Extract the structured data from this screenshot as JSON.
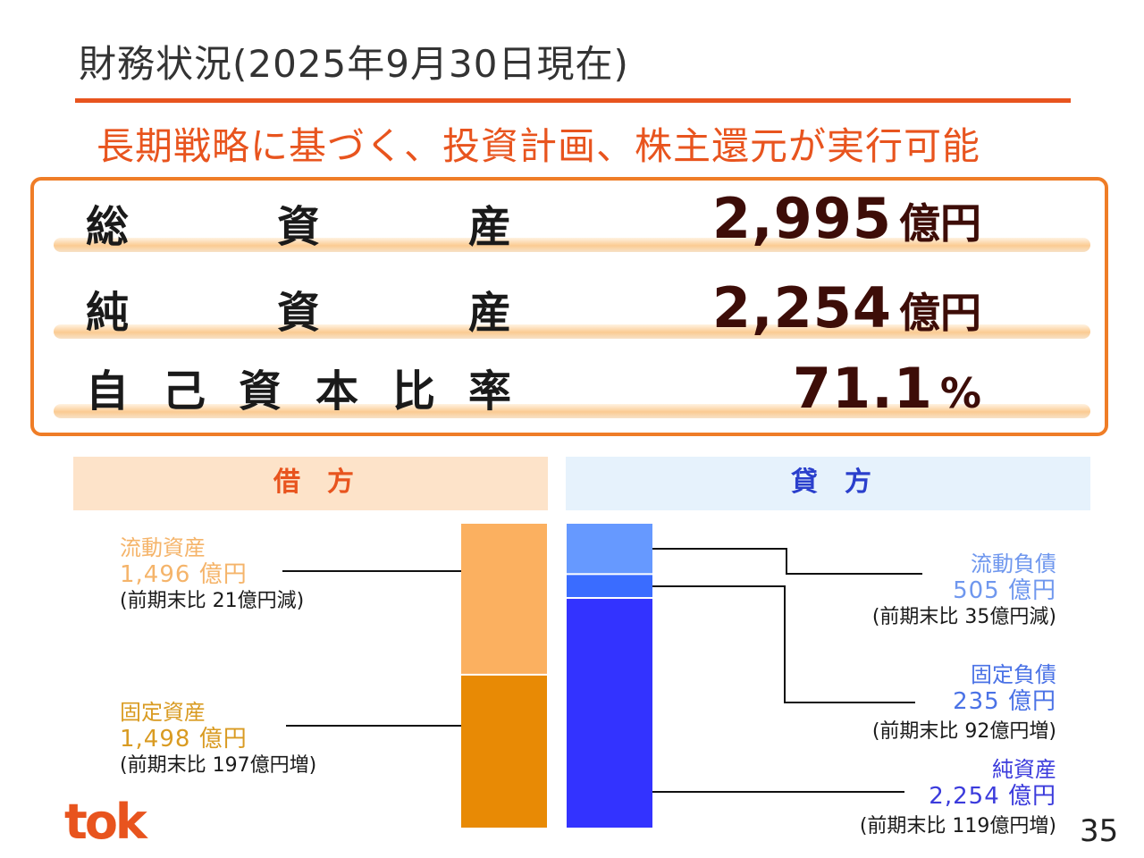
{
  "slide": {
    "title": "財務状況(2025年9月30日現在)",
    "subtitle": "長期戦略に基づく、投資計画、株主還元が実行可能",
    "page_number": "35",
    "logo_text": "tok"
  },
  "summary": {
    "total_assets": {
      "label_chars": [
        "総",
        "資",
        "産"
      ],
      "value": "2,995",
      "unit": "億円"
    },
    "net_assets": {
      "label_chars": [
        "純",
        "資",
        "産"
      ],
      "value": "2,254",
      "unit": "億円"
    },
    "equity_ratio": {
      "label_chars": [
        "自",
        "己",
        "資",
        "本",
        "比",
        "率"
      ],
      "value": "71.1",
      "unit": "%"
    }
  },
  "balance_sheet": {
    "debit_header": "借　方",
    "credit_header": "貸　方",
    "debit": [
      {
        "name": "流動資産",
        "amount": "1,496 億円",
        "change": "(前期末比 21億円減)",
        "value": 1496,
        "color": "#fbb060",
        "text_color": "#f5b46a"
      },
      {
        "name": "固定資産",
        "amount": "1,498 億円",
        "change": "(前期末比 197億円増)",
        "value": 1498,
        "color": "#e88a05",
        "text_color": "#d99b22"
      }
    ],
    "credit": [
      {
        "name": "流動負債",
        "amount": "505 億円",
        "change": "(前期末比 35億円減)",
        "value": 505,
        "color": "#6699ff",
        "text_color": "#6f97ee"
      },
      {
        "name": "固定負債",
        "amount": "235 億円",
        "change": "(前期末比 92億円増)",
        "value": 235,
        "color": "#3a6cff",
        "text_color": "#4a72e6"
      },
      {
        "name": "純資産",
        "amount": "2,254 億円",
        "change": "(前期末比 119億円増)",
        "value": 2254,
        "color": "#3333ff",
        "text_color": "#3b3bdc"
      }
    ],
    "header_colors": {
      "debit": "#e8541e",
      "credit": "#2a3fcc"
    }
  }
}
